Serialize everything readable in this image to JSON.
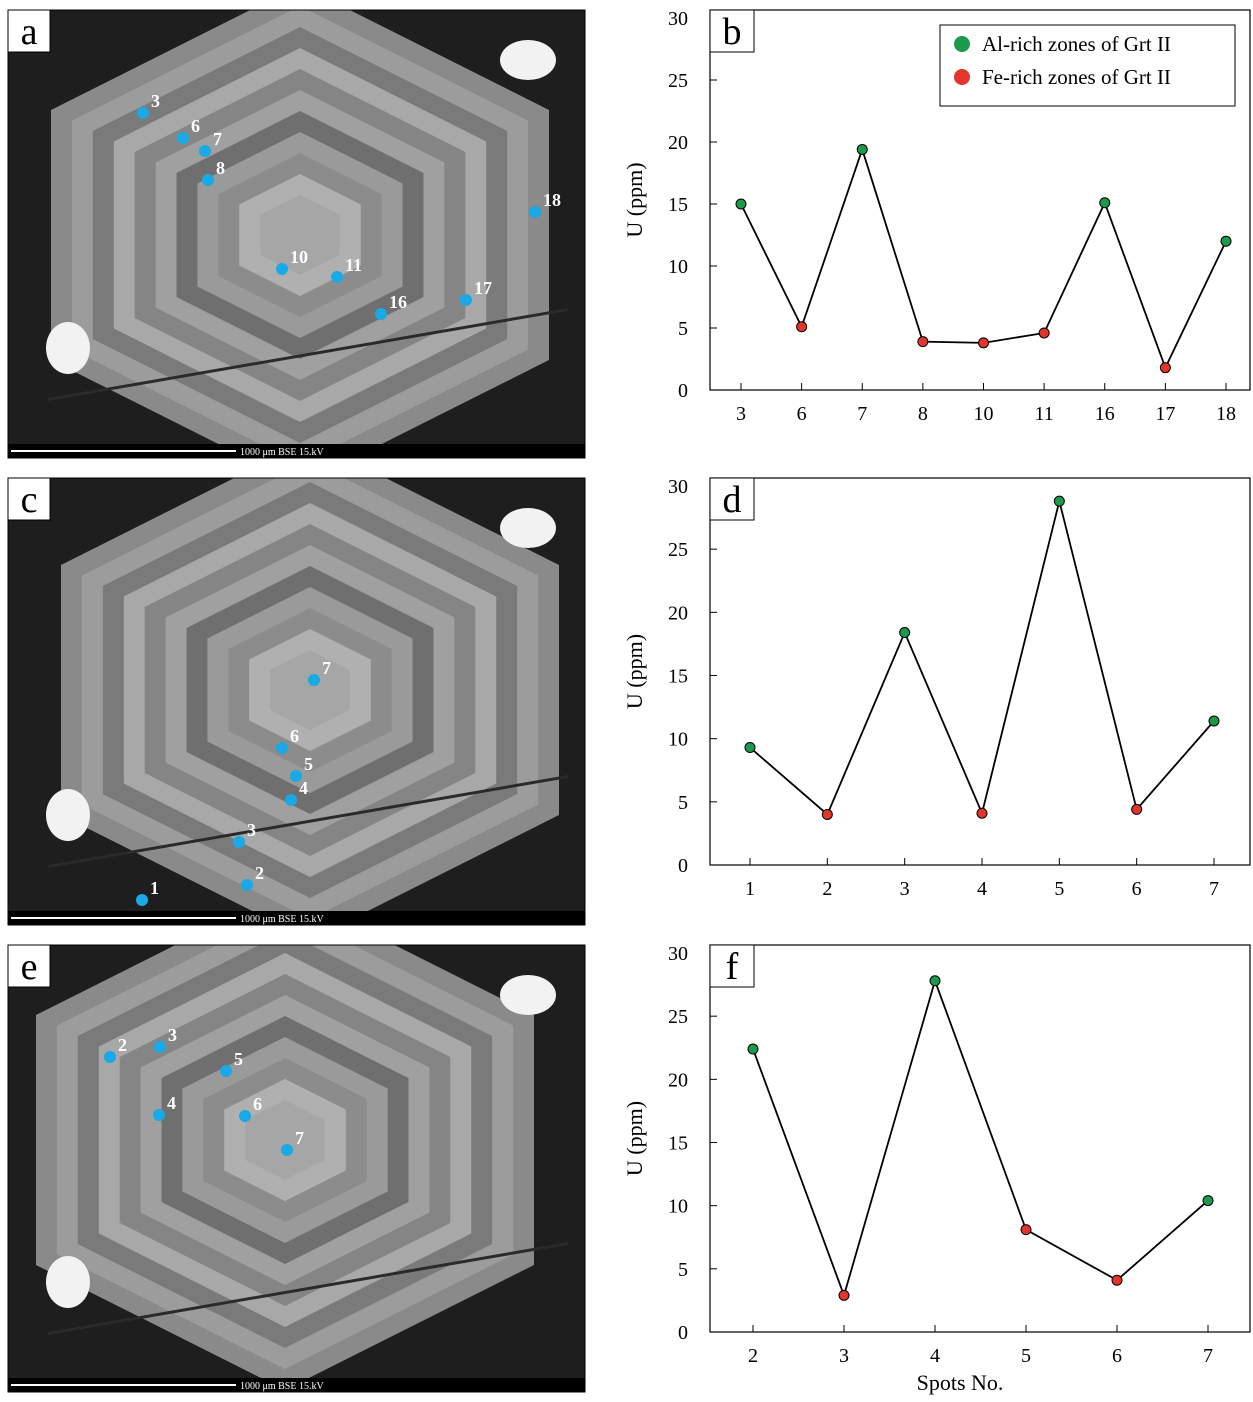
{
  "chart_data": [
    {
      "type": "line",
      "panel_label": "b",
      "y_label": "U (ppm)",
      "categories": [
        "3",
        "6",
        "7",
        "8",
        "10",
        "11",
        "16",
        "17",
        "18"
      ],
      "values": [
        15,
        5.1,
        19.4,
        3.9,
        3.8,
        4.6,
        15.1,
        1.8,
        12
      ],
      "marker_colors": [
        "#1c9a4c",
        "#e2352b",
        "#1c9a4c",
        "#e2352b",
        "#e2352b",
        "#e2352b",
        "#1c9a4c",
        "#e2352b",
        "#1c9a4c"
      ],
      "legend": [
        {
          "name": "Al-rich zones of Grt II",
          "color": "#1c9a4c"
        },
        {
          "name": "Fe-rich zones of Grt II",
          "color": "#e2352b"
        }
      ],
      "ylim": [
        0,
        30
      ],
      "yticks": [
        0,
        5,
        10,
        15,
        20,
        25,
        30
      ]
    },
    {
      "type": "line",
      "panel_label": "d",
      "y_label": "U (ppm)",
      "categories": [
        "1",
        "2",
        "3",
        "4",
        "5",
        "6",
        "7"
      ],
      "values": [
        9.3,
        4,
        18.4,
        4.1,
        28.8,
        4.4,
        11.4
      ],
      "marker_colors": [
        "#1c9a4c",
        "#e2352b",
        "#1c9a4c",
        "#e2352b",
        "#1c9a4c",
        "#e2352b",
        "#1c9a4c"
      ],
      "ylim": [
        0,
        30
      ],
      "yticks": [
        0,
        5,
        10,
        15,
        20,
        25,
        30
      ]
    },
    {
      "type": "line",
      "panel_label": "f",
      "y_label": "U (ppm)",
      "x_label": "Spots No.",
      "categories": [
        "2",
        "3",
        "4",
        "5",
        "6",
        "7"
      ],
      "values": [
        22.4,
        2.9,
        27.8,
        8.1,
        4.1,
        10.4
      ],
      "marker_colors": [
        "#1c9a4c",
        "#e2352b",
        "#1c9a4c",
        "#e2352b",
        "#e2352b",
        "#1c9a4c"
      ],
      "ylim": [
        0,
        30
      ],
      "yticks": [
        0,
        5,
        10,
        15,
        20,
        25,
        30
      ]
    }
  ],
  "images": [
    {
      "panel_label": "a",
      "scale_text": "1000 μm BSE 15.kV",
      "spots": [
        "3",
        "6",
        "7",
        "8",
        "10",
        "11",
        "16",
        "17",
        "18"
      ]
    },
    {
      "panel_label": "c",
      "scale_text": "1000 μm BSE 15.kV",
      "spots": [
        "7",
        "6",
        "5",
        "4",
        "3",
        "2",
        "1"
      ]
    },
    {
      "panel_label": "e",
      "scale_text": "1000 μm BSE 15.kV",
      "spots": [
        "2",
        "3",
        "5",
        "4",
        "6",
        "7"
      ]
    }
  ]
}
